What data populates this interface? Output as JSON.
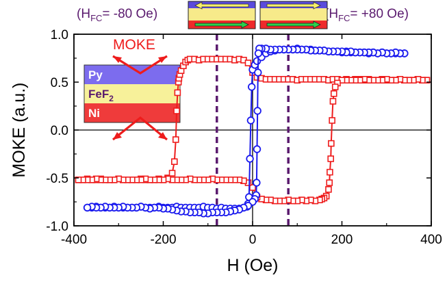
{
  "chart_data": {
    "type": "scatter",
    "title": "",
    "xlabel": "H (Oe)",
    "ylabel": "MOKE (a.u.)",
    "xlim": [
      -400,
      400
    ],
    "ylim": [
      -1.0,
      1.0
    ],
    "x_ticks": [
      -400,
      -200,
      0,
      200,
      400
    ],
    "x_tick_labels": [
      "-400",
      "-200",
      "0",
      "200",
      "400"
    ],
    "y_ticks": [
      -1.0,
      -0.5,
      0.0,
      0.5,
      1.0
    ],
    "y_tick_labels": [
      "-1.0",
      "-0.5",
      "0.0",
      "0.5",
      "1.0"
    ],
    "grid": false,
    "zero_lines": true,
    "vlines": [
      {
        "x": -80,
        "style": "dashed",
        "color": "#5a1a6e"
      },
      {
        "x": 80,
        "style": "dashed",
        "color": "#5a1a6e"
      }
    ],
    "annotations": {
      "left_top": {
        "prefix": "(H",
        "sub": "FC",
        "suffix": "= -80 Oe)"
      },
      "right_top": {
        "prefix": "(H",
        "sub": "FC",
        "suffix": "= +80 Oe)"
      },
      "moke_label": "MOKE",
      "layers": [
        {
          "label": "Py",
          "sub": "",
          "color": "#7c6cee"
        },
        {
          "label": "FeF",
          "sub": "2",
          "color": "#f7f19a"
        },
        {
          "label": "Ni",
          "sub": "",
          "color": "#ef3b3b"
        }
      ]
    },
    "series": [
      {
        "color": "#ee1c1c",
        "marker": "square",
        "loops": [
          {
            "x": [
              -390,
              -380,
              -370,
              -360,
              -350,
              -340,
              -330,
              -320,
              -310,
              -300,
              -290,
              -280,
              -270,
              -260,
              -250,
              -240,
              -230,
              -220,
              -210,
              -200,
              -190,
              -180,
              -175,
              -172,
              -170,
              -168,
              -166,
              -165,
              -163,
              -160,
              -155,
              -150,
              -145,
              -140,
              -130,
              -120,
              -110,
              -100,
              -90,
              -80,
              -70,
              -60,
              -50,
              -40,
              -30,
              -20,
              -10,
              0,
              10,
              20,
              30,
              40,
              50,
              60,
              70,
              80,
              90,
              100,
              110,
              120,
              130,
              140,
              150,
              160,
              170,
              180,
              190,
              200,
              210,
              220,
              230,
              240,
              250,
              260,
              270,
              280,
              290,
              300,
              310,
              320,
              330,
              340,
              350,
              360,
              370,
              380,
              390
            ],
            "y": [
              -0.52,
              -0.52,
              -0.51,
              -0.52,
              -0.52,
              -0.51,
              -0.52,
              -0.52,
              -0.52,
              -0.51,
              -0.52,
              -0.52,
              -0.52,
              -0.52,
              -0.51,
              -0.52,
              -0.52,
              -0.52,
              -0.51,
              -0.52,
              -0.5,
              -0.45,
              -0.33,
              -0.1,
              0.2,
              0.39,
              0.5,
              0.54,
              0.58,
              0.62,
              0.67,
              0.71,
              0.73,
              0.74,
              0.74,
              0.73,
              0.74,
              0.74,
              0.74,
              0.74,
              0.74,
              0.74,
              0.74,
              0.73,
              0.74,
              0.73,
              0.7,
              0.6,
              0.55,
              0.54,
              0.53,
              0.53,
              0.53,
              0.53,
              0.53,
              0.53,
              0.53,
              0.52,
              0.53,
              0.53,
              0.53,
              0.53,
              0.53,
              0.53,
              0.52,
              0.53,
              0.53,
              0.52,
              0.53,
              0.52,
              0.53,
              0.53,
              0.52,
              0.53,
              0.52,
              0.52,
              0.53,
              0.52,
              0.52,
              0.52,
              0.53,
              0.52,
              0.52,
              0.52,
              0.53,
              0.52,
              0.52
            ]
          },
          {
            "x": [
              390,
              380,
              370,
              360,
              350,
              340,
              330,
              320,
              310,
              300,
              290,
              280,
              270,
              260,
              250,
              240,
              230,
              220,
              210,
              200,
              190,
              185,
              182,
              180,
              178,
              176,
              175,
              173,
              172,
              170,
              165,
              160,
              155,
              150,
              140,
              130,
              120,
              110,
              100,
              90,
              80,
              70,
              60,
              50,
              40,
              30,
              20,
              10,
              0,
              -10,
              -20,
              -30,
              -40,
              -50,
              -60,
              -70,
              -80,
              -90,
              -100,
              -110,
              -120,
              -130,
              -140,
              -150,
              -160,
              -170,
              -180,
              -190,
              -200,
              -210,
              -220,
              -230,
              -240,
              -250,
              -260,
              -270,
              -280,
              -290,
              -300,
              -310,
              -320,
              -330,
              -340,
              -350,
              -360,
              -370,
              -380,
              -390
            ],
            "y": [
              0.52,
              0.52,
              0.53,
              0.52,
              0.52,
              0.52,
              0.53,
              0.52,
              0.52,
              0.53,
              0.52,
              0.52,
              0.52,
              0.52,
              0.53,
              0.52,
              0.52,
              0.52,
              0.52,
              0.52,
              0.49,
              0.45,
              0.38,
              0.3,
              0.1,
              -0.14,
              -0.3,
              -0.44,
              -0.55,
              -0.62,
              -0.69,
              -0.71,
              -0.72,
              -0.73,
              -0.74,
              -0.73,
              -0.74,
              -0.73,
              -0.74,
              -0.74,
              -0.73,
              -0.74,
              -0.74,
              -0.74,
              -0.73,
              -0.73,
              -0.72,
              -0.7,
              -0.6,
              -0.55,
              -0.53,
              -0.52,
              -0.52,
              -0.52,
              -0.52,
              -0.52,
              -0.52,
              -0.51,
              -0.52,
              -0.52,
              -0.52,
              -0.52,
              -0.51,
              -0.52,
              -0.52,
              -0.52,
              -0.52,
              -0.51,
              -0.52,
              -0.52,
              -0.52,
              -0.52,
              -0.51,
              -0.52,
              -0.52,
              -0.52,
              -0.52,
              -0.52,
              -0.51,
              -0.52,
              -0.52,
              -0.52,
              -0.52,
              -0.51,
              -0.52,
              -0.52,
              -0.52,
              -0.52
            ]
          }
        ]
      },
      {
        "color": "#1a1aee",
        "marker": "circle",
        "loops": [
          {
            "x": [
              -370,
              -360,
              -350,
              -340,
              -330,
              -320,
              -310,
              -300,
              -290,
              -280,
              -270,
              -260,
              -250,
              -240,
              -230,
              -220,
              -210,
              -200,
              -190,
              -180,
              -170,
              -160,
              -150,
              -140,
              -130,
              -120,
              -110,
              -100,
              -90,
              -80,
              -70,
              -60,
              -50,
              -40,
              -30,
              -20,
              -12,
              -10,
              -8,
              -6,
              -4,
              -2,
              0,
              5,
              10,
              20,
              30,
              40,
              50,
              60,
              70,
              80,
              90,
              100,
              110,
              120,
              130,
              140,
              150,
              160,
              170,
              180,
              190,
              200,
              210,
              220,
              230,
              240,
              250,
              260,
              270,
              280,
              290,
              300,
              310,
              320,
              330,
              340
            ],
            "y": [
              -0.81,
              -0.81,
              -0.8,
              -0.81,
              -0.81,
              -0.81,
              -0.8,
              -0.81,
              -0.81,
              -0.81,
              -0.81,
              -0.81,
              -0.8,
              -0.81,
              -0.81,
              -0.81,
              -0.8,
              -0.81,
              -0.81,
              -0.81,
              -0.8,
              -0.81,
              -0.81,
              -0.81,
              -0.81,
              -0.81,
              -0.8,
              -0.81,
              -0.81,
              -0.82,
              -0.81,
              -0.82,
              -0.82,
              -0.82,
              -0.82,
              -0.81,
              -0.8,
              -0.77,
              -0.7,
              -0.3,
              0.1,
              0.45,
              0.63,
              0.68,
              0.72,
              0.76,
              0.8,
              0.82,
              0.83,
              0.84,
              0.84,
              0.84,
              0.84,
              0.85,
              0.84,
              0.84,
              0.84,
              0.83,
              0.83,
              0.83,
              0.82,
              0.82,
              0.82,
              0.81,
              0.82,
              0.81,
              0.81,
              0.81,
              0.81,
              0.8,
              0.81,
              0.8,
              0.81,
              0.8,
              0.8,
              0.8,
              0.8,
              0.8
            ]
          },
          {
            "x": [
              340,
              330,
              320,
              310,
              300,
              290,
              280,
              270,
              260,
              250,
              240,
              230,
              220,
              210,
              200,
              190,
              180,
              170,
              160,
              150,
              140,
              130,
              120,
              110,
              100,
              90,
              80,
              70,
              60,
              50,
              40,
              30,
              20,
              15,
              13,
              12,
              11,
              10,
              9,
              8,
              5,
              0,
              -10,
              -20,
              -30,
              -40,
              -50,
              -60,
              -70,
              -80,
              -90,
              -100,
              -110,
              -120,
              -130,
              -140,
              -150,
              -160,
              -170,
              -180,
              -190,
              -200,
              -210,
              -220,
              -230,
              -240,
              -250,
              -260,
              -270,
              -280,
              -290,
              -300,
              -310,
              -320,
              -330,
              -340,
              -350,
              -360,
              -370
            ],
            "y": [
              0.8,
              0.8,
              0.81,
              0.8,
              0.8,
              0.81,
              0.8,
              0.81,
              0.81,
              0.81,
              0.81,
              0.81,
              0.82,
              0.81,
              0.82,
              0.82,
              0.82,
              0.82,
              0.83,
              0.83,
              0.83,
              0.83,
              0.84,
              0.84,
              0.84,
              0.84,
              0.84,
              0.84,
              0.84,
              0.84,
              0.84,
              0.85,
              0.85,
              0.85,
              0.8,
              0.6,
              0.2,
              -0.2,
              -0.55,
              -0.68,
              -0.72,
              -0.75,
              -0.79,
              -0.81,
              -0.83,
              -0.84,
              -0.85,
              -0.86,
              -0.86,
              -0.86,
              -0.86,
              -0.87,
              -0.87,
              -0.86,
              -0.86,
              -0.86,
              -0.85,
              -0.85,
              -0.84,
              -0.83,
              -0.82,
              -0.82,
              -0.81,
              -0.81,
              -0.82,
              -0.81,
              -0.8,
              -0.81,
              -0.81,
              -0.81,
              -0.8,
              -0.81,
              -0.81,
              -0.81,
              -0.8,
              -0.81,
              -0.81,
              -0.8,
              -0.81
            ]
          }
        ]
      }
    ]
  }
}
